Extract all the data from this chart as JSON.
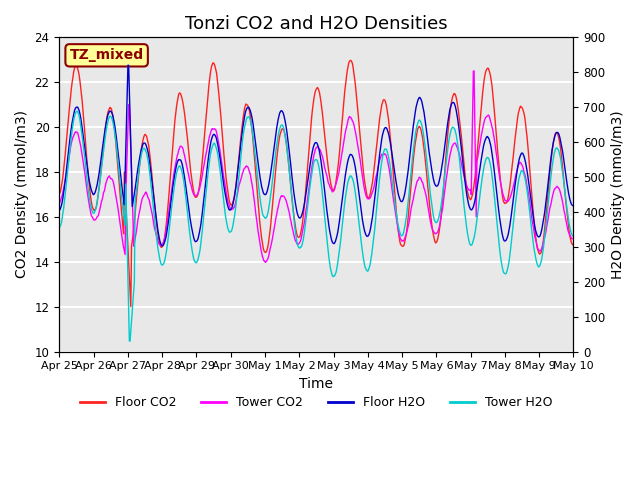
{
  "title": "Tonzi CO2 and H2O Densities",
  "xlabel": "Time",
  "ylabel_left": "CO2 Density (mmol/m3)",
  "ylabel_right": "H2O Density (mmol/m3)",
  "annotation": "TZ_mixed",
  "annotation_color": "#8B0000",
  "annotation_bg": "#FFFF99",
  "annotation_border": "#8B0000",
  "ylim_left": [
    10,
    24
  ],
  "ylim_right": [
    0,
    900
  ],
  "yticks_left": [
    10,
    12,
    14,
    16,
    18,
    20,
    22,
    24
  ],
  "yticks_right": [
    0,
    100,
    200,
    300,
    400,
    500,
    600,
    700,
    800,
    900
  ],
  "colors": {
    "floor_co2": "#FF2222",
    "tower_co2": "#FF00FF",
    "floor_h2o": "#0000CC",
    "tower_h2o": "#00CCCC"
  },
  "legend_labels": [
    "Floor CO2",
    "Tower CO2",
    "Floor H2O",
    "Tower H2O"
  ],
  "n_days": 15,
  "seed": 42,
  "background_color": "#E8E8E8",
  "grid_color": "#FFFFFF",
  "title_fontsize": 13,
  "label_fontsize": 10,
  "tick_fontsize": 8.5
}
